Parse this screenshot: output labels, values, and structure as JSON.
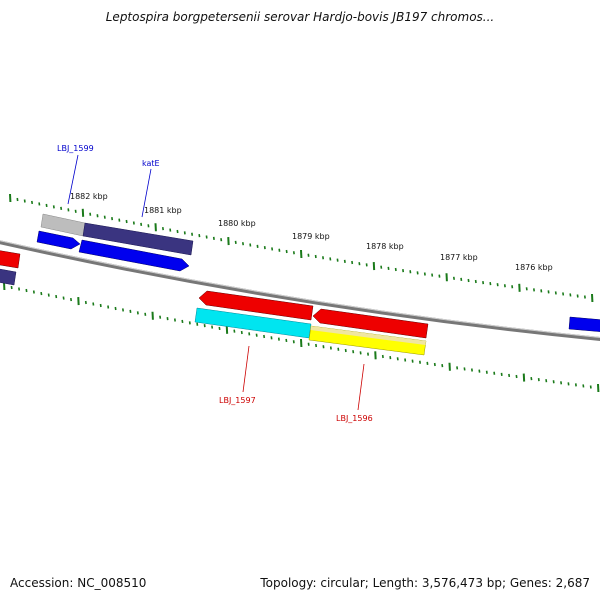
{
  "title": "Leptospira borgpetersenii serovar Hardjo-bovis JB197 chromos...",
  "footer": {
    "accession": "Accession: NC_008510",
    "summary": "Topology: circular; Length: 3,576,473 bp; Genes: 2,687"
  },
  "scale_ticks": [
    "1882 kbp",
    "1881 kbp",
    "1880 kbp",
    "1879 kbp",
    "1878 kbp",
    "1877 kbp",
    "1876 kbp"
  ],
  "gene_labels": {
    "top": [
      {
        "text": "LBJ_1599",
        "color": "#0000cc"
      },
      {
        "text": "katE",
        "color": "#0000cc"
      }
    ],
    "bottom": [
      {
        "text": "LBJ_1597",
        "color": "#cc0000"
      },
      {
        "text": "LBJ_1596",
        "color": "#cc0000"
      }
    ]
  },
  "colors": {
    "forward_strand": "#0000ee",
    "reverse_strand": "#ee0000",
    "cog_dark": "#3a3480",
    "cog_cyan": "#00e5f0",
    "cog_yellow": "#ffff00",
    "tick": "#1a7a1a",
    "backbone": "#888888"
  }
}
